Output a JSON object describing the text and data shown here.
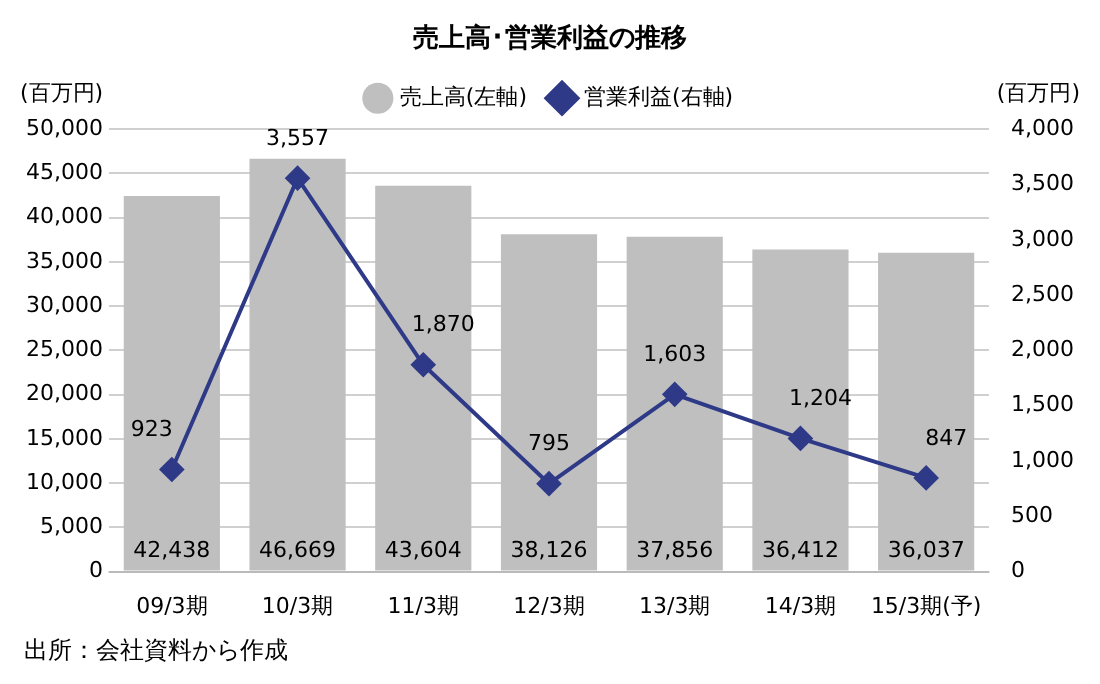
{
  "chart_data": {
    "type": "bar",
    "title": "売上高･営業利益の推移",
    "ylabel": "(百万円)",
    "y2label": "(百万円)",
    "categories": [
      "09/3期",
      "10/3期",
      "11/3期",
      "12/3期",
      "13/3期",
      "14/3期",
      "15/3期(予)"
    ],
    "series": [
      {
        "name": "売上高(左軸)",
        "color": "#bfbfbf",
        "values": [
          42438,
          46669,
          43604,
          38126,
          37856,
          36412,
          36037
        ],
        "value_labels": [
          "42,438",
          "46,669",
          "43,604",
          "38,126",
          "37,856",
          "36,412",
          "36,037"
        ]
      },
      {
        "name": "営業利益(右軸)",
        "type": "line",
        "axis": "y2",
        "color": "#2e3a87",
        "values": [
          923,
          3557,
          1870,
          795,
          1603,
          1204,
          847
        ],
        "value_labels": [
          "923",
          "3,557",
          "1,870",
          "795",
          "1,603",
          "1,204",
          "847"
        ]
      }
    ],
    "ylim": [
      0,
      50000
    ],
    "yticks": [
      0,
      {
        "value": 5000,
        "label": "5,000"
      },
      {
        "value": 10000,
        "label": "10,000"
      },
      {
        "value": 15000,
        "label": "15,000"
      },
      {
        "value": 20000,
        "label": "20,000"
      },
      {
        "value": 25000,
        "label": "25,000"
      },
      {
        "value": 30000,
        "label": "30,000"
      },
      {
        "value": 35000,
        "label": "35,000"
      },
      {
        "value": 40000,
        "label": "40,000"
      },
      {
        "value": 45000,
        "label": "45,000"
      },
      {
        "value": 50000,
        "label": "50,000"
      }
    ],
    "y2lim": [
      0,
      4000
    ],
    "y2ticks": [
      0,
      500,
      {
        "value": 1000,
        "label": "1,000"
      },
      {
        "value": 1500,
        "label": "1,500"
      },
      {
        "value": 2000,
        "label": "2,000"
      },
      {
        "value": 2500,
        "label": "2,500"
      },
      {
        "value": 3000,
        "label": "3,000"
      },
      {
        "value": 3500,
        "label": "3,500"
      },
      {
        "value": 4000,
        "label": "4,000"
      }
    ],
    "grid": "y",
    "legend": "top",
    "marker": "diamond",
    "line_style": "solid",
    "annotations": [
      "出所：会社資料から作成"
    ]
  }
}
